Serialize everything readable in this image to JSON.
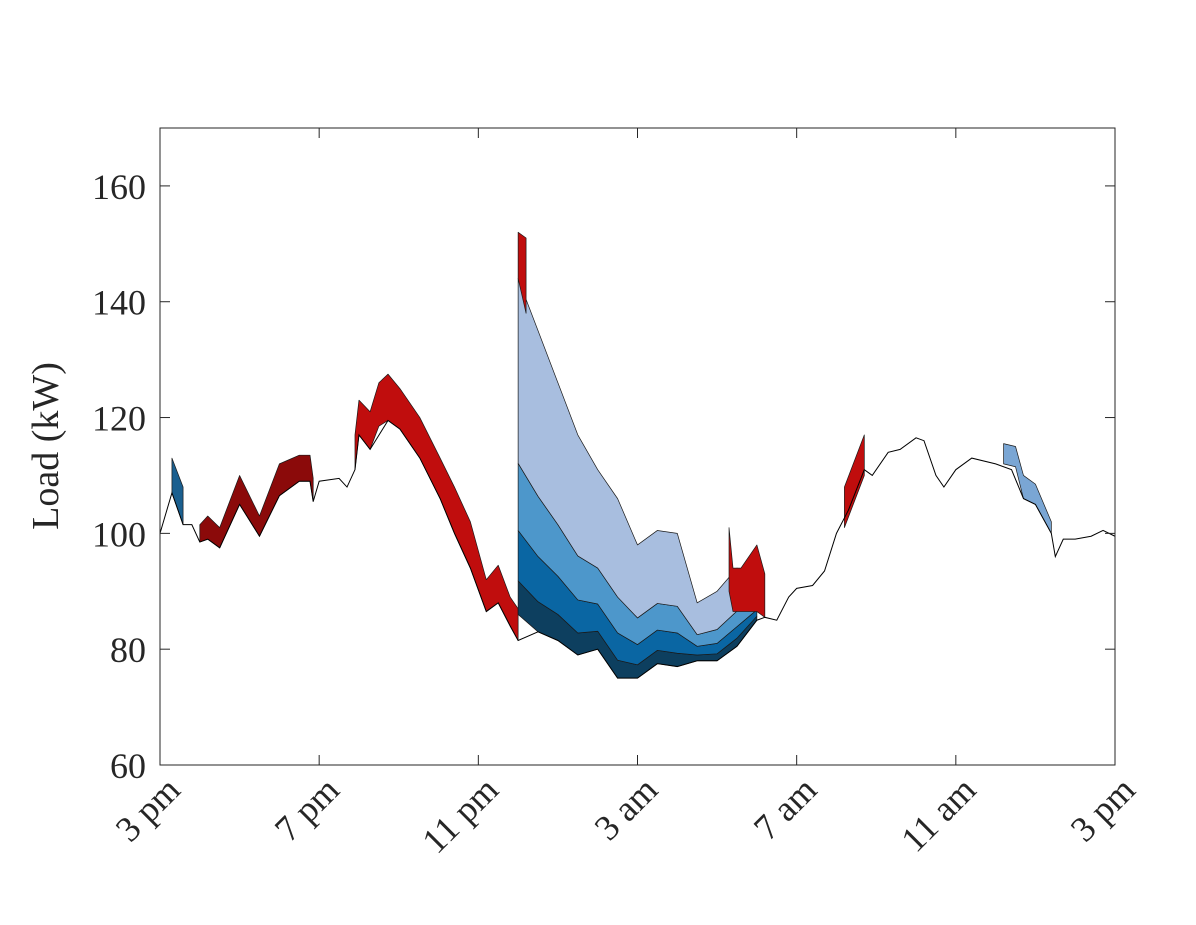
{
  "chart_data": {
    "type": "line",
    "y_label": "Load (kW)",
    "xlim": [
      0,
      24
    ],
    "xticks": [
      {
        "value": 0,
        "label": "3 pm"
      },
      {
        "value": 4,
        "label": "7 pm"
      },
      {
        "value": 8,
        "label": "11 pm"
      },
      {
        "value": 12,
        "label": "3 am"
      },
      {
        "value": 16,
        "label": "7 am"
      },
      {
        "value": 20,
        "label": "11 am"
      },
      {
        "value": 24,
        "label": "3 pm"
      }
    ],
    "ylim": [
      60,
      170
    ],
    "yticks": [
      60,
      80,
      100,
      120,
      140,
      160
    ],
    "line": {
      "color": "#000000",
      "x": [
        0,
        0.3,
        0.58,
        0.8,
        1.0,
        1.2,
        1.5,
        2.0,
        2.5,
        3.0,
        3.5,
        3.77,
        3.85,
        4.0,
        4.5,
        4.7,
        4.9,
        5.0,
        5.28,
        5.73,
        6.03,
        6.53,
        7.04,
        7.4,
        7.8,
        8.2,
        8.5,
        8.8,
        9.0,
        9.5,
        10,
        10.5,
        11,
        11.5,
        12,
        12.5,
        13,
        13.5,
        14,
        14.5,
        15,
        15.2,
        15.5,
        15.8,
        16.0,
        16.4,
        16.7,
        17.0,
        17.3,
        17.7,
        17.9,
        18.3,
        18.6,
        19.0,
        19.2,
        19.5,
        19.7,
        20.0,
        20.4,
        21.0,
        21.4,
        21.7,
        22.0,
        22.4,
        22.5,
        22.7,
        23.0,
        23.4,
        23.7,
        24.0
      ],
      "values": [
        100,
        107,
        101.5,
        101.5,
        98.5,
        99,
        97.5,
        105,
        99.5,
        106.5,
        109,
        109,
        105.5,
        109,
        109.5,
        108,
        111,
        117,
        114.5,
        119.5,
        118,
        113,
        106,
        100,
        94,
        86.5,
        88,
        84,
        81.5,
        83,
        81.5,
        79,
        80,
        75,
        75,
        77.5,
        77,
        78,
        78,
        80.5,
        85,
        85.5,
        85,
        89,
        90.5,
        91,
        93.5,
        100,
        104,
        111,
        110,
        114,
        114.5,
        116.5,
        116,
        110,
        108,
        111,
        113,
        112,
        111,
        106,
        105,
        100,
        96,
        99,
        99,
        99.5,
        100.5,
        99.5
      ]
    },
    "bands": [
      {
        "color": "#1a5f8f",
        "x": [
          0.3,
          0.58
        ],
        "lower": [
          107,
          101.5
        ],
        "upper": [
          113,
          108
        ]
      },
      {
        "color": "#8b0a0a",
        "x": [
          1.0,
          1.2,
          1.5,
          2.0,
          2.5,
          3.0,
          3.5,
          3.77,
          3.85
        ],
        "lower": [
          98.5,
          99,
          97.5,
          105,
          99.5,
          106.5,
          109,
          109,
          105.5
        ],
        "upper": [
          101.5,
          103,
          101,
          110,
          103,
          112,
          113.5,
          113.5,
          109.5
        ]
      },
      {
        "color": "#c00d0d",
        "x": [
          4.9,
          5.0,
          5.28,
          5.5,
          5.73,
          6.03,
          6.53,
          7.04,
          7.4,
          7.8,
          8.2,
          8.5,
          8.8,
          9.0
        ],
        "lower": [
          111,
          117,
          114.5,
          118.5,
          119.5,
          118,
          113,
          106,
          100,
          94,
          86.5,
          88,
          84,
          81.5
        ],
        "upper": [
          117,
          123,
          121,
          126,
          127.5,
          125,
          120,
          113,
          108,
          102,
          92,
          94.5,
          89,
          87
        ]
      },
      {
        "color": "#0d3f5f",
        "x": [
          9.0,
          9.5,
          10,
          10.5,
          11,
          11.5,
          12,
          12.5,
          13,
          13.5,
          14,
          14.5,
          15
        ],
        "lower": [
          86,
          83,
          81.5,
          79,
          80,
          75,
          75,
          77.5,
          77,
          78,
          78,
          80.5,
          85
        ],
        "upper": [
          91.8,
          88.2,
          86,
          82.8,
          83.1,
          78.1,
          77.3,
          79.8,
          79.3,
          79,
          79.2,
          81.9,
          85.7
        ]
      },
      {
        "color": "#0a66a3",
        "x": [
          9.0,
          9.5,
          10,
          10.5,
          11,
          11.5,
          12,
          12.5,
          13,
          13.5,
          14,
          14.5,
          15
        ],
        "lower": [
          91.8,
          88.2,
          86,
          82.8,
          83.1,
          78.1,
          77.3,
          79.8,
          79.3,
          79,
          79.2,
          81.9,
          85.7
        ],
        "upper": [
          100.5,
          96,
          92.6,
          88.5,
          87.8,
          82.8,
          80.8,
          83.3,
          82.8,
          80.5,
          81,
          83.9,
          86.8
        ]
      },
      {
        "color": "#4d97cb",
        "x": [
          9.0,
          9.5,
          10,
          10.5,
          11,
          11.5,
          12,
          12.5,
          13,
          13.5,
          14,
          14.5,
          15
        ],
        "lower": [
          100.5,
          96,
          92.6,
          88.5,
          87.8,
          82.8,
          80.8,
          83.3,
          82.8,
          80.5,
          81,
          83.9,
          86.8
        ],
        "upper": [
          112.1,
          106.4,
          101.5,
          96.1,
          94,
          89,
          85.4,
          87.9,
          87.4,
          82.5,
          83.4,
          86.6,
          88.2
        ]
      },
      {
        "color": "#a8bedf",
        "x": [
          9.0,
          9.5,
          10,
          10.5,
          11,
          11.5,
          12,
          12.5,
          13,
          13.5,
          14,
          14.5,
          15
        ],
        "lower": [
          112.1,
          106.4,
          101.5,
          96.1,
          94,
          89,
          85.4,
          87.9,
          87.4,
          82.5,
          83.4,
          86.6,
          88.2
        ],
        "upper": [
          144,
          135,
          126,
          117,
          111,
          106,
          98,
          100.5,
          100,
          88,
          90,
          94,
          92
        ]
      },
      {
        "color": "#c00d0d",
        "x": [
          9.0,
          9.2
        ],
        "lower": [
          144,
          138
        ],
        "upper": [
          152,
          151
        ]
      },
      {
        "color": "#c00d0d",
        "x": [
          14.3,
          14.4,
          14.6,
          15.0,
          15.2
        ],
        "lower": [
          90,
          86.5,
          86.5,
          86.5,
          85.5
        ],
        "upper": [
          101,
          94,
          94,
          98,
          93
        ]
      },
      {
        "color": "#c00d0d",
        "x": [
          17.2,
          17.7
        ],
        "lower": [
          101,
          110
        ],
        "upper": [
          108,
          117
        ]
      },
      {
        "color": "#7aa6d4",
        "x": [
          21.2,
          21.5,
          21.7,
          22.0,
          22.4
        ],
        "lower": [
          112,
          111.5,
          106,
          105,
          100
        ],
        "upper": [
          115.5,
          115,
          110,
          108.5,
          102
        ]
      }
    ]
  }
}
